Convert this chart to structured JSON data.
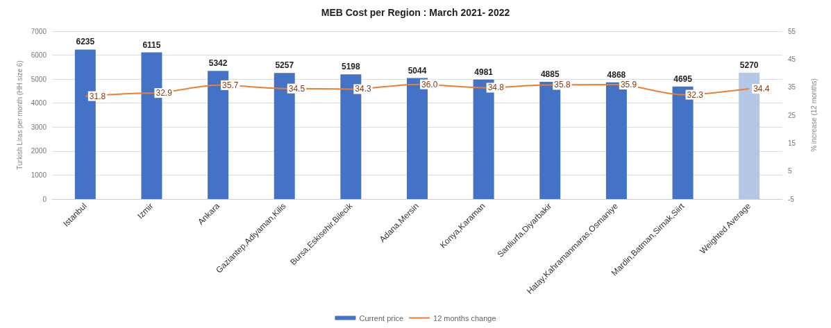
{
  "chart_data": {
    "type": "bar",
    "title": "MEB Cost per Region : March 2021- 2022",
    "categories": [
      "Istanbul",
      "Izmir",
      "Ankara",
      "Gaziantep,Adiyaman,Kilis",
      "Bursa,Eskisehir,Bilecik",
      "Adana,Mersin",
      "Konya,Karaman",
      "Sanliurfa,Diyarbakir",
      "Hatay,Kahramanmaras,Osmaniye",
      "Mardin,Batman,Sirnak,Siirt",
      "Weighted Average"
    ],
    "series": [
      {
        "name": "Current price",
        "color": "#4472c4",
        "colors": [
          "#4472c4",
          "#4472c4",
          "#4472c4",
          "#4472c4",
          "#4472c4",
          "#4472c4",
          "#4472c4",
          "#4472c4",
          "#4472c4",
          "#4472c4",
          "#b4c7e7"
        ],
        "values": [
          6235,
          6115,
          5342,
          5257,
          5198,
          5044,
          4981,
          4885,
          4868,
          4695,
          5270
        ],
        "value_labels": [
          "6235",
          "6115",
          "5342",
          "5257",
          "5198",
          "5044",
          "4981",
          "4885",
          "4868",
          "4695",
          "5270"
        ]
      },
      {
        "name": "12 months change",
        "type": "line",
        "axis": "y2",
        "color": "#ed7d31",
        "values": [
          31.8,
          32.9,
          35.7,
          34.5,
          34.3,
          36.0,
          34.8,
          35.8,
          35.9,
          32.3,
          34.4
        ],
        "value_labels": [
          "31.8",
          "32.9",
          "35.7",
          "34.5",
          "34.3",
          "36.0",
          "34.8",
          "35.8",
          "35.9",
          "32.3",
          "34.4"
        ]
      }
    ],
    "ylabel": "Turkish Liras per month (HH size 6)",
    "y2label": "% increase (12 months)",
    "ylim": [
      0,
      7000
    ],
    "yticks": [
      0,
      1000,
      2000,
      3000,
      4000,
      5000,
      6000,
      7000
    ],
    "y2lim": [
      -5,
      55
    ],
    "y2ticks": [
      -5,
      5,
      15,
      25,
      35,
      45,
      55
    ],
    "grid": "y",
    "legend": "bottom",
    "marker": "none"
  }
}
